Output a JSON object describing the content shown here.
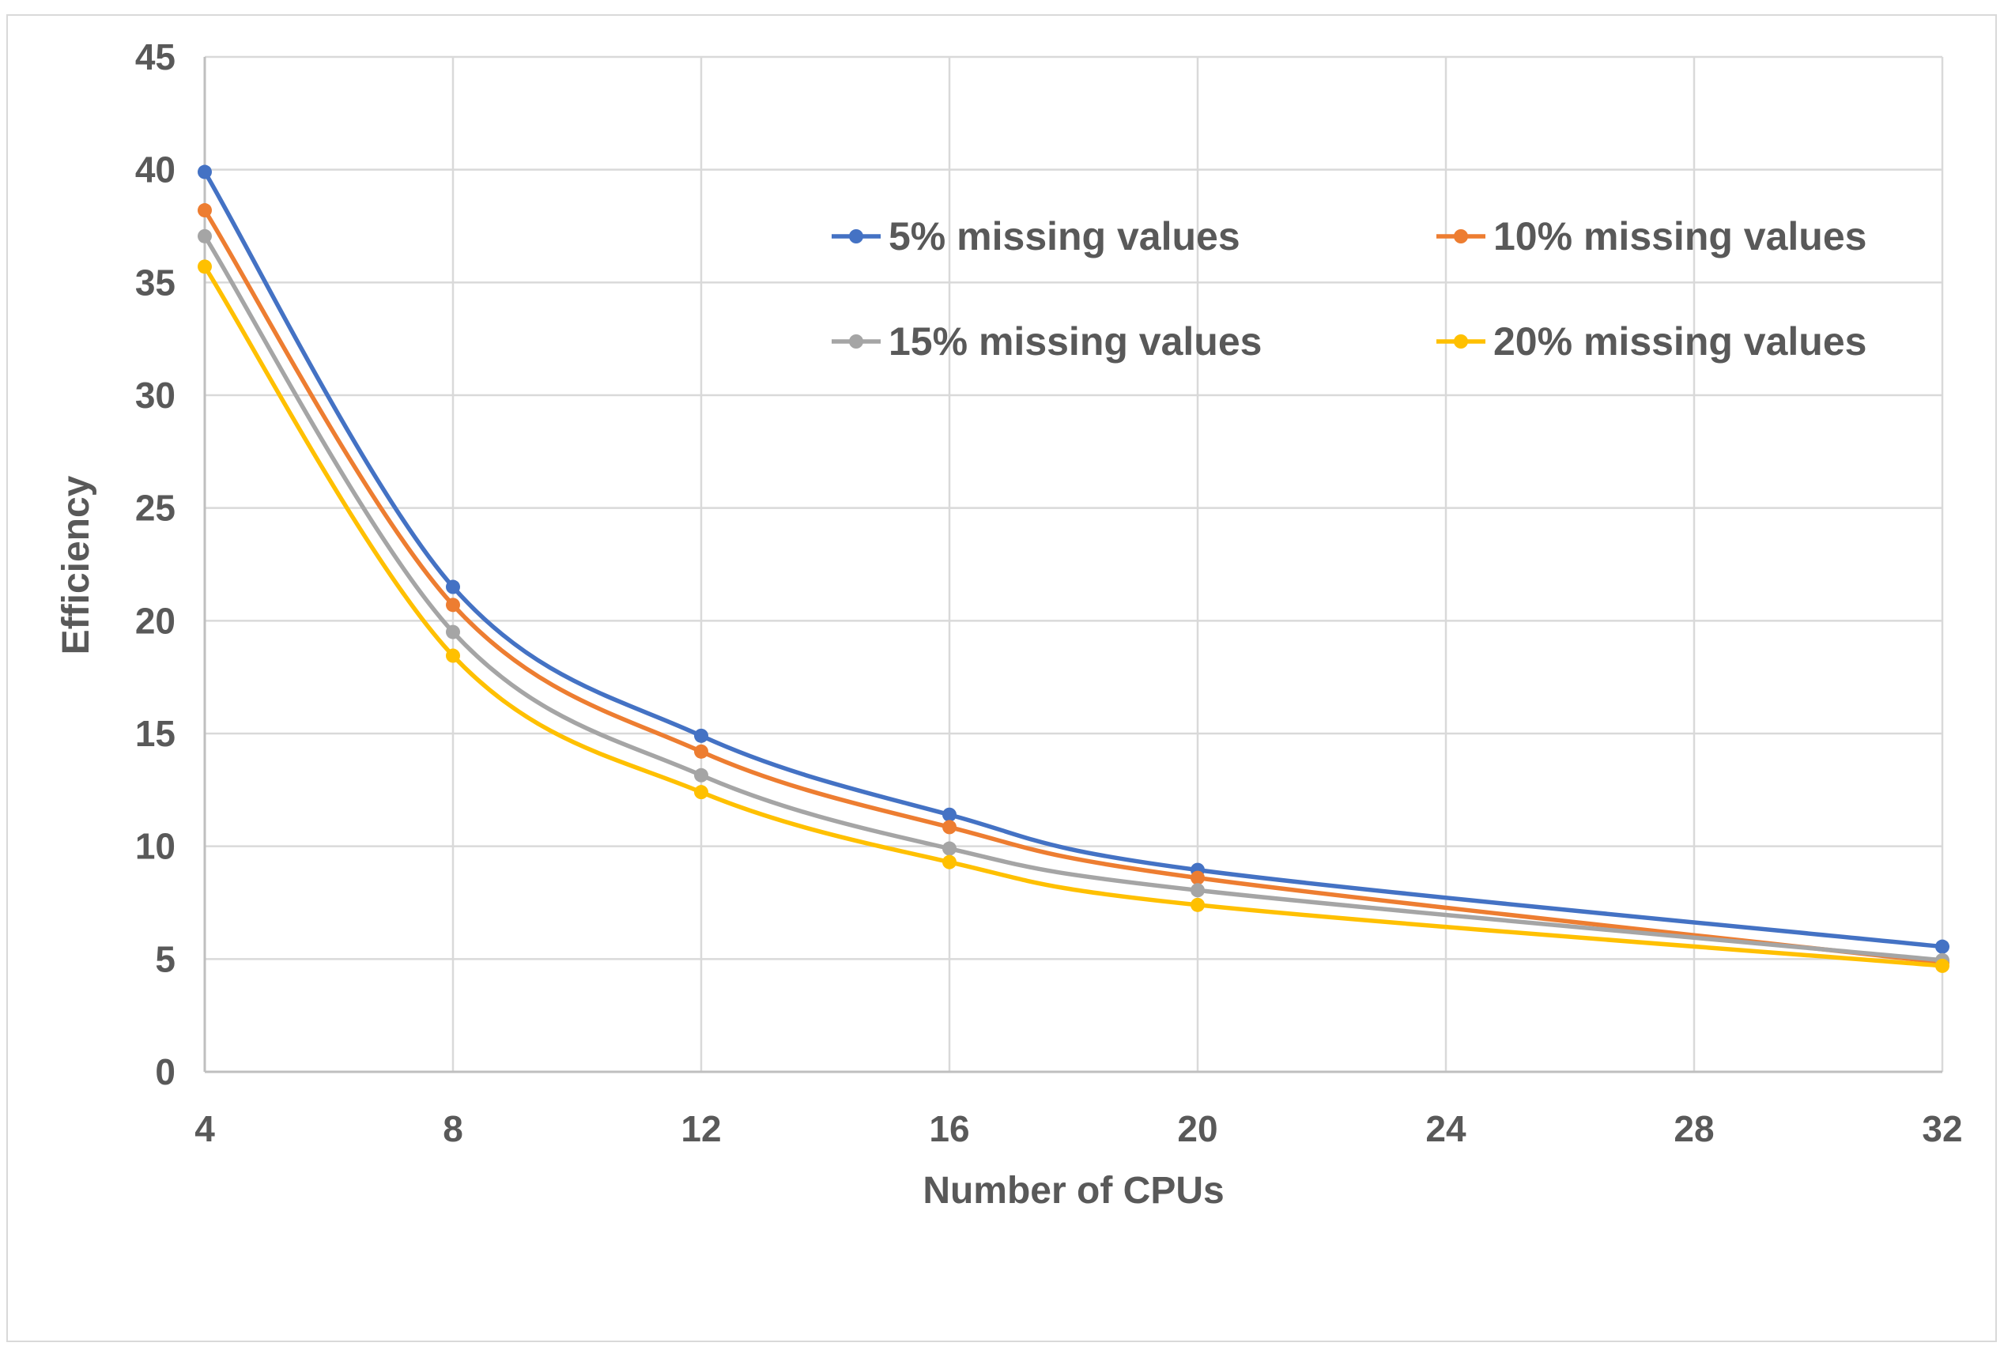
{
  "chart_data": {
    "type": "line",
    "title": "",
    "xlabel": "Number of CPUs",
    "ylabel": "Efficiency",
    "x": [
      4,
      8,
      12,
      16,
      20,
      32
    ],
    "xlim": [
      4,
      32
    ],
    "ylim": [
      0,
      45
    ],
    "xticks": [
      4,
      8,
      12,
      16,
      20,
      24,
      28,
      32
    ],
    "yticks": [
      0,
      5,
      10,
      15,
      20,
      25,
      30,
      35,
      40,
      45
    ],
    "grid": true,
    "smooth": true,
    "legend_position": "top-right",
    "series": [
      {
        "name": "5% missing values",
        "color": "#4472C4",
        "values": [
          39.9,
          21.5,
          14.9,
          11.4,
          8.95,
          5.55
        ]
      },
      {
        "name": "10% missing values",
        "color": "#ED7D31",
        "values": [
          38.2,
          20.7,
          14.2,
          10.85,
          8.6,
          4.85
        ]
      },
      {
        "name": "15% missing values",
        "color": "#A5A5A5",
        "values": [
          37.05,
          19.5,
          13.15,
          9.9,
          8.05,
          4.95
        ]
      },
      {
        "name": "20% missing values",
        "color": "#FFC000",
        "values": [
          35.7,
          18.45,
          12.4,
          9.3,
          7.4,
          4.7
        ]
      }
    ]
  }
}
